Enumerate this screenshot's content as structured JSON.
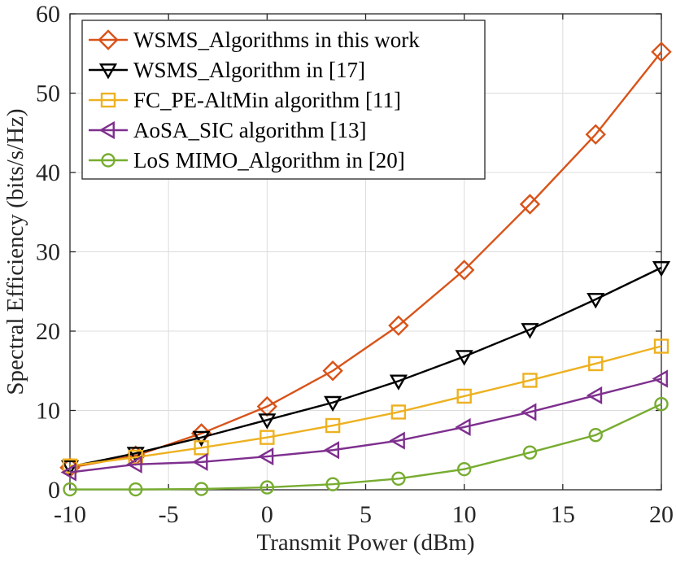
{
  "chart_data": {
    "type": "line",
    "title": "",
    "xlabel": "Transmit Power (dBm)",
    "ylabel": "Spectral Efficiency (bits/s/Hz)",
    "xlim": [
      -10,
      20
    ],
    "ylim": [
      0,
      60
    ],
    "grid": true,
    "legend_position": "top-left",
    "x": [
      -10,
      -6.667,
      -3.333,
      0,
      3.333,
      6.667,
      10,
      13.333,
      16.667,
      20
    ],
    "x_ticks": [
      -10,
      -5,
      0,
      5,
      10,
      15,
      20
    ],
    "x_tick_labels": [
      "-10",
      "-5",
      "0",
      "5",
      "10",
      "15",
      "20"
    ],
    "y_ticks": [
      0,
      10,
      20,
      30,
      40,
      50,
      60
    ],
    "y_tick_labels": [
      "0",
      "10",
      "20",
      "30",
      "40",
      "50",
      "60"
    ],
    "series": [
      {
        "name": "WSMS_Algorithms in this work",
        "color": "#D95319",
        "marker": "diamond",
        "values": [
          2.8,
          4.3,
          7.1,
          10.5,
          15.0,
          20.7,
          27.7,
          36.0,
          44.8,
          55.2
        ]
      },
      {
        "name": "WSMS_Algorithm in [17]",
        "color": "#000000",
        "marker": "triangle-down",
        "values": [
          2.9,
          4.6,
          6.6,
          8.8,
          11.0,
          13.7,
          16.8,
          20.2,
          24.0,
          28.0
        ]
      },
      {
        "name": "FC_PE-AltMin algorithm [11]",
        "color": "#EDB120",
        "marker": "square",
        "values": [
          3.0,
          4.1,
          5.3,
          6.6,
          8.1,
          9.8,
          11.8,
          13.8,
          15.9,
          18.1
        ]
      },
      {
        "name": "AoSA_SIC algorithm [13]",
        "color": "#7E2F8E",
        "marker": "triangle-left",
        "values": [
          2.2,
          3.2,
          3.5,
          4.2,
          5.0,
          6.2,
          7.9,
          9.8,
          11.9,
          14.0
        ]
      },
      {
        "name": "LoS MIMO_Algorithm in [20]",
        "color": "#77AC30",
        "marker": "circle",
        "values": [
          0.05,
          0.05,
          0.1,
          0.3,
          0.7,
          1.4,
          2.6,
          4.7,
          6.9,
          10.8
        ]
      }
    ]
  }
}
